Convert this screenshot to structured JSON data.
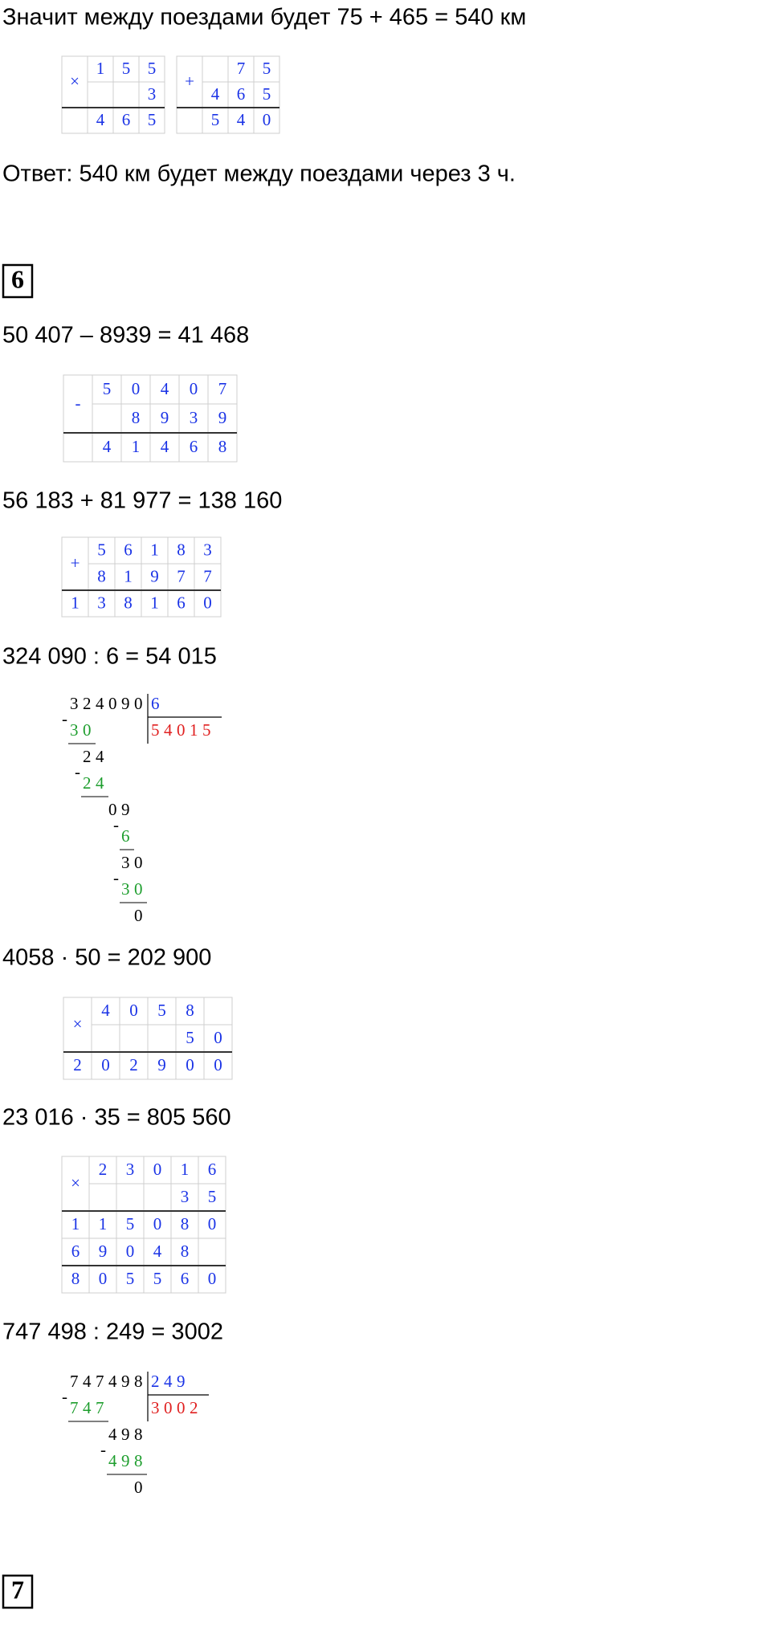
{
  "blocks": [
    {
      "type": "text",
      "text": "Значит между поездами будет 75 + 465 = 540 км"
    },
    {
      "type": "grids",
      "grids": [
        {
          "rows": [
            [
              "×",
              "1",
              "5",
              "5"
            ],
            [
              null,
              null,
              null,
              "3"
            ],
            [
              null,
              "4",
              "6",
              "5"
            ]
          ]
        },
        {
          "rows": [
            [
              "+",
              null,
              "7",
              "5"
            ],
            [
              null,
              "4",
              "6",
              "5"
            ],
            [
              null,
              "5",
              "4",
              "0"
            ]
          ]
        }
      ]
    },
    {
      "type": "text",
      "text": "Ответ: 540 км будет между поездами через 3 ч."
    },
    {
      "type": "task",
      "number": "6"
    },
    {
      "type": "text",
      "text": "50 407 – 8939 = 41 468"
    },
    {
      "type": "grids",
      "grids": [
        {
          "rows": [
            [
              "-",
              "5",
              "0",
              "4",
              "0",
              "7"
            ],
            [
              null,
              null,
              "8",
              "9",
              "3",
              "9"
            ],
            [
              null,
              "4",
              "1",
              "4",
              "6",
              "8"
            ]
          ]
        }
      ]
    },
    {
      "type": "text",
      "text": "56 183 + 81 977 = 138 160"
    },
    {
      "type": "grids",
      "grids": [
        {
          "rows": [
            [
              "+",
              "5",
              "6",
              "1",
              "8",
              "3"
            ],
            [
              null,
              "8",
              "1",
              "9",
              "7",
              "7"
            ],
            [
              "1",
              "3",
              "8",
              "1",
              "6",
              "0"
            ]
          ]
        }
      ]
    },
    {
      "type": "text",
      "text": "324 090 : 6 = 54 015"
    },
    {
      "type": "division",
      "dividend": "324090",
      "divisor": "6",
      "quotient": "54015",
      "sign": "-",
      "steps": [
        {
          "sub": "30"
        },
        {
          "partial": "24",
          "sub": "24"
        },
        {
          "partial": "09",
          "sub": "6"
        },
        {
          "partial": "30",
          "sub": "30"
        }
      ],
      "remainder": "0"
    },
    {
      "type": "text",
      "text": "4058 · 50 = 202 900"
    },
    {
      "type": "grids",
      "grids": [
        {
          "rows": [
            [
              "×",
              "4",
              "0",
              "5",
              "8",
              null
            ],
            [
              null,
              null,
              null,
              null,
              "5",
              "0"
            ],
            [
              "2",
              "0",
              "2",
              "9",
              "0",
              "0"
            ]
          ]
        }
      ]
    },
    {
      "type": "text",
      "text": "23 016 · 35 = 805 560"
    },
    {
      "type": "grids",
      "grids": [
        {
          "rows": [
            [
              "×",
              "2",
              "3",
              "0",
              "1",
              "6"
            ],
            [
              null,
              null,
              null,
              null,
              "3",
              "5"
            ],
            [
              "1",
              "1",
              "5",
              "0",
              "8",
              "0"
            ],
            [
              "6",
              "9",
              "0",
              "4",
              "8",
              null
            ],
            [
              "8",
              "0",
              "5",
              "5",
              "6",
              "0"
            ]
          ]
        }
      ]
    },
    {
      "type": "text",
      "text": "747 498 : 249 = 3002"
    },
    {
      "type": "division",
      "dividend": "747498",
      "divisor": "249",
      "quotient": "3002",
      "sign": "-",
      "steps": [
        {
          "sub": "747"
        },
        {
          "partial": "498",
          "sub": "498"
        }
      ],
      "remainder": "0"
    },
    {
      "type": "task",
      "number": "7"
    }
  ]
}
